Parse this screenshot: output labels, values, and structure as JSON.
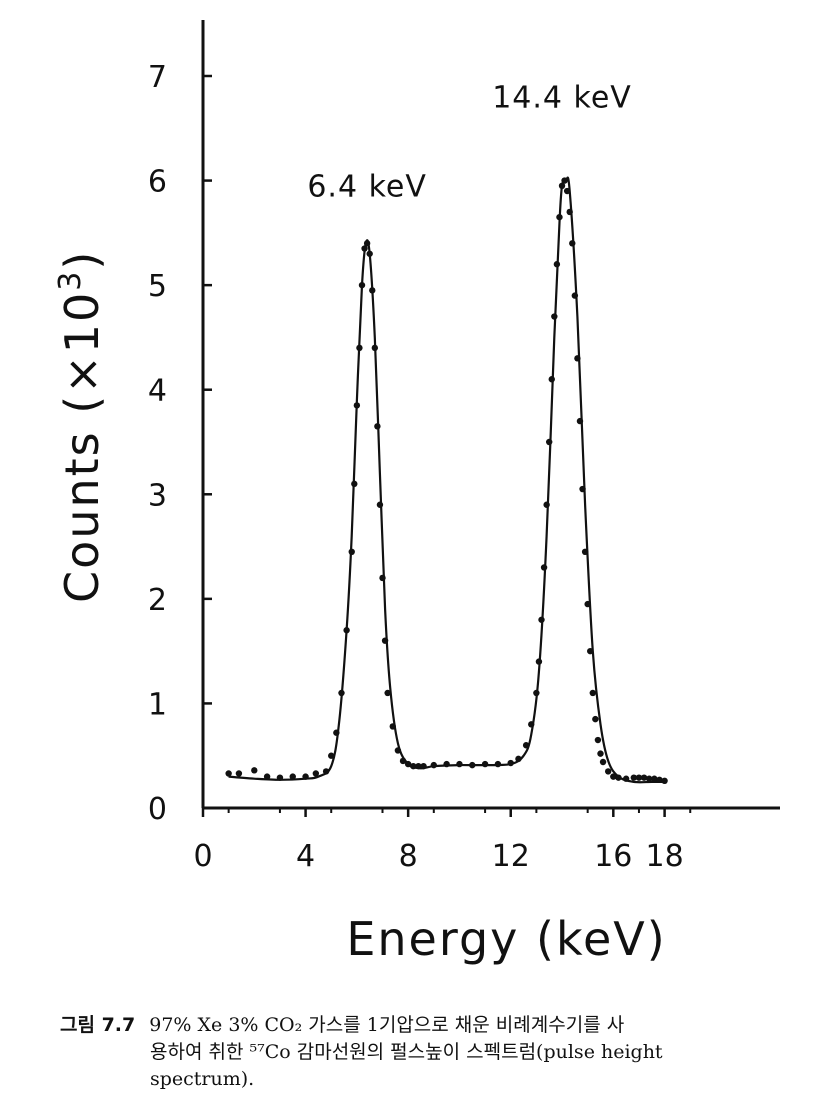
{
  "chart_data": {
    "type": "scatter",
    "xlabel": "Energy (keV)",
    "ylabel_main": "Counts (×10",
    "ylabel_sup": "3",
    "ylabel_close": ")",
    "xlim": [
      0,
      22.5
    ],
    "ylim": [
      0,
      7.5
    ],
    "xticks": [
      0,
      4,
      8,
      12,
      16,
      18
    ],
    "xtick_labels": [
      "0",
      "4",
      "8",
      "12",
      "16",
      "18"
    ],
    "yticks": [
      0,
      1,
      2,
      3,
      4,
      5,
      6,
      7
    ],
    "ytick_labels": [
      "0",
      "1",
      "2",
      "3",
      "4",
      "5",
      "6",
      "7"
    ],
    "grid": false,
    "annotations": [
      {
        "text": "6.4 keV",
        "x": 6.4,
        "y": 5.85
      },
      {
        "text": "14.4 keV",
        "x": 14.0,
        "y": 6.7
      }
    ],
    "series": [
      {
        "style": "points",
        "x": [
          1.0,
          1.4,
          2.0,
          2.5,
          3.0,
          3.5,
          4.0,
          4.4,
          4.8,
          5.0,
          5.2,
          5.4,
          5.6,
          5.8,
          5.9,
          6.0,
          6.1,
          6.2,
          6.3,
          6.4,
          6.5,
          6.6,
          6.7,
          6.8,
          6.9,
          7.0,
          7.1,
          7.2,
          7.4,
          7.6,
          7.8,
          8.0,
          8.2,
          8.4,
          8.6,
          9.0,
          9.5,
          10.0,
          10.5,
          11.0,
          11.5,
          12.0,
          12.3,
          12.6,
          12.8,
          13.0,
          13.1,
          13.2,
          13.3,
          13.4,
          13.5,
          13.6,
          13.7,
          13.8,
          13.9,
          14.0,
          14.1,
          14.2,
          14.3,
          14.4,
          14.5,
          14.6,
          14.7,
          14.8,
          14.9,
          15.0,
          15.1,
          15.2,
          15.3,
          15.4,
          15.5,
          15.6,
          15.8,
          16.0,
          16.2,
          16.5,
          16.8,
          17.0,
          17.2,
          17.4,
          17.6,
          17.8,
          18.0
        ],
        "y": [
          0.33,
          0.33,
          0.36,
          0.3,
          0.29,
          0.3,
          0.3,
          0.33,
          0.35,
          0.5,
          0.72,
          1.1,
          1.7,
          2.45,
          3.1,
          3.85,
          4.4,
          5.0,
          5.35,
          5.4,
          5.3,
          4.95,
          4.4,
          3.65,
          2.9,
          2.2,
          1.6,
          1.1,
          0.78,
          0.55,
          0.45,
          0.42,
          0.4,
          0.4,
          0.4,
          0.41,
          0.42,
          0.42,
          0.41,
          0.42,
          0.42,
          0.43,
          0.47,
          0.6,
          0.8,
          1.1,
          1.4,
          1.8,
          2.3,
          2.9,
          3.5,
          4.1,
          4.7,
          5.2,
          5.65,
          5.95,
          6.0,
          5.9,
          5.7,
          5.4,
          4.9,
          4.3,
          3.7,
          3.05,
          2.45,
          1.95,
          1.5,
          1.1,
          0.85,
          0.65,
          0.52,
          0.44,
          0.35,
          0.3,
          0.29,
          0.28,
          0.29,
          0.29,
          0.29,
          0.28,
          0.28,
          0.27,
          0.26
        ]
      },
      {
        "style": "fit-curve",
        "x": [
          1.0,
          2.0,
          3.0,
          4.0,
          4.5,
          5.0,
          5.3,
          5.6,
          5.8,
          6.0,
          6.2,
          6.35,
          6.5,
          6.7,
          6.9,
          7.1,
          7.3,
          7.6,
          8.0,
          8.5,
          9.0,
          10.0,
          11.0,
          12.0,
          12.5,
          12.8,
          13.1,
          13.4,
          13.7,
          13.9,
          14.0,
          14.15,
          14.3,
          14.6,
          14.9,
          15.2,
          15.5,
          15.8,
          16.2,
          16.8,
          17.5,
          18.0
        ],
        "y": [
          0.3,
          0.28,
          0.27,
          0.28,
          0.3,
          0.4,
          0.8,
          1.7,
          2.6,
          3.9,
          5.0,
          5.4,
          5.3,
          4.5,
          3.2,
          1.9,
          1.15,
          0.62,
          0.42,
          0.38,
          0.4,
          0.41,
          0.41,
          0.42,
          0.5,
          0.7,
          1.3,
          2.6,
          4.5,
          5.6,
          5.95,
          6.0,
          5.9,
          4.7,
          2.9,
          1.5,
          0.8,
          0.45,
          0.3,
          0.25,
          0.25,
          0.25
        ]
      }
    ]
  },
  "caption": {
    "figure_number": "그림 7.7",
    "line1": "97% Xe 3% CO₂ 가스를 1기압으로 채운 비례계수기를 사",
    "line2": "용하여 취한 ⁵⁷Co 감마선원의 펄스높이 스펙트럼(pulse height",
    "line3": "spectrum)."
  }
}
